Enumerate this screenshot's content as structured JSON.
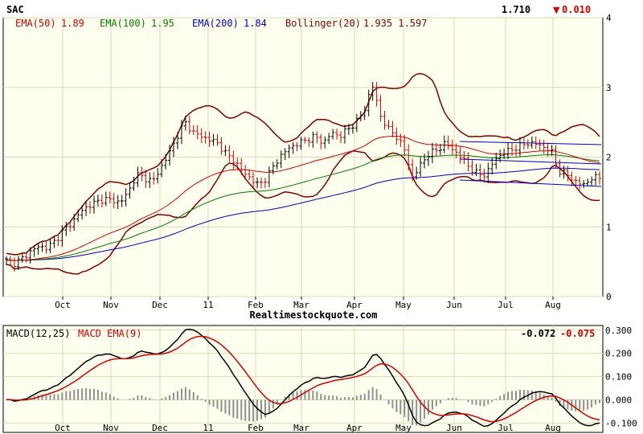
{
  "ticker": "SAC",
  "last_price": "1.710",
  "change_text": "0.010",
  "change_color": "#d00000",
  "watermark": "Realtimestockquote.com",
  "legend": [
    {
      "label": "EMA(50)",
      "value": "1.89",
      "color": "#d00000"
    },
    {
      "label": "EMA(100)",
      "value": "1.95",
      "color": "#008000"
    },
    {
      "label": "EMA(200)",
      "value": "1.84",
      "color": "#0000c8"
    },
    {
      "label": "Bollinger(20)",
      "value": "1.935 1.597",
      "color": "#800000"
    }
  ],
  "macd_title": "MACD(12,25)",
  "macd_ema_label": "MACD EMA(9)",
  "macd_value": "-0.072",
  "macd_ema_value": "-0.075",
  "chart_data": [
    {
      "type": "ohlc",
      "name": "price",
      "x_ticks": [
        "Oct",
        "Nov",
        "Dec",
        "11",
        "Feb",
        "Mar",
        "Apr",
        "May",
        "Jun",
        "Jul",
        "Aug"
      ],
      "y_ticks": [
        "0",
        "1",
        "2",
        "3",
        "4"
      ],
      "ylim": [
        0,
        4
      ],
      "grid": true,
      "close": [
        0.52,
        0.48,
        0.55,
        0.65,
        0.72,
        0.7,
        0.8,
        0.95,
        1.05,
        1.2,
        1.3,
        1.35,
        1.4,
        1.38,
        1.35,
        1.5,
        1.75,
        1.7,
        1.65,
        1.85,
        2.05,
        2.3,
        2.5,
        2.35,
        2.3,
        2.25,
        2.2,
        2.05,
        1.95,
        1.8,
        1.7,
        1.6,
        1.7,
        1.9,
        2.05,
        2.15,
        2.2,
        2.25,
        2.3,
        2.2,
        2.35,
        2.3,
        2.4,
        2.5,
        2.65,
        3.05,
        2.6,
        2.4,
        2.3,
        2.1,
        1.7,
        1.9,
        2.05,
        2.1,
        2.2,
        2.1,
        2.0,
        1.85,
        1.75,
        1.75,
        1.95,
        2.05,
        2.1,
        2.15,
        2.2,
        2.2,
        2.15,
        2.1,
        1.8,
        1.75,
        1.65,
        1.6,
        1.7,
        1.71
      ],
      "ema50_end": 1.89,
      "ema100_end": 1.95,
      "ema200_end": 1.84,
      "bollinger_upper_end": 1.935,
      "bollinger_lower_end": 1.597
    },
    {
      "type": "line",
      "name": "macd",
      "x_ticks": [
        "Oct",
        "Nov",
        "Dec",
        "11",
        "Feb",
        "Mar",
        "Apr",
        "May",
        "Jun",
        "Jul",
        "Aug"
      ],
      "y_ticks": [
        "0.300",
        "0.200",
        "0.100",
        "0.000",
        "-0.100"
      ],
      "ylim": [
        -0.14,
        0.32
      ],
      "grid": true,
      "macd_end": -0.072,
      "macd_ema_end": -0.075
    }
  ]
}
